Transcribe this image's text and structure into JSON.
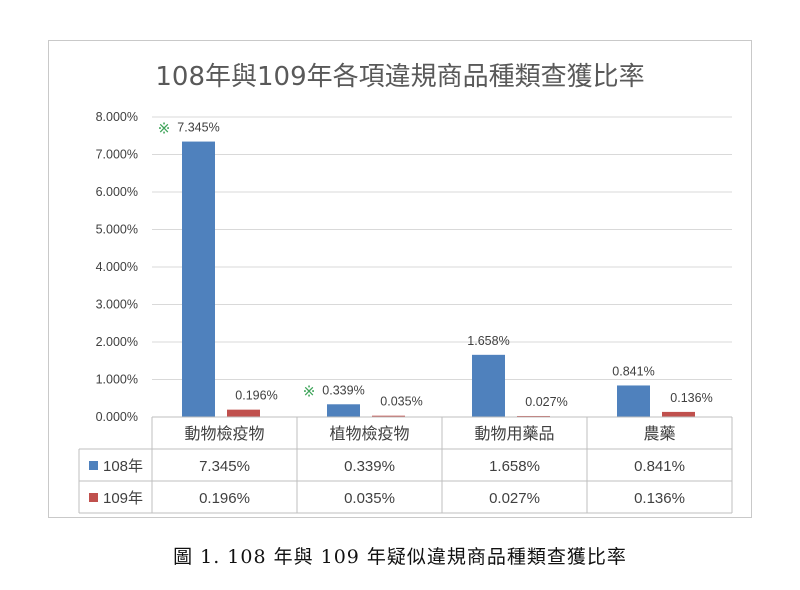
{
  "chart_data": {
    "type": "bar",
    "title": "108年與109年各項違規商品種類查獲比率",
    "categories": [
      "動物檢疫物",
      "植物檢疫物",
      "動物用藥品",
      "農藥"
    ],
    "series": [
      {
        "name": "108年",
        "values": [
          7.345,
          0.339,
          1.658,
          0.841
        ],
        "labels": [
          "7.345%",
          "0.339%",
          "1.658%",
          "0.841%"
        ],
        "color": "#4f81bd"
      },
      {
        "name": "109年",
        "values": [
          0.196,
          0.035,
          0.027,
          0.136
        ],
        "labels": [
          "0.196%",
          "0.035%",
          "0.027%",
          "0.136%"
        ],
        "color": "#c0504d"
      }
    ],
    "ylim": [
      0,
      8
    ],
    "yticks": [
      "0.000%",
      "1.000%",
      "2.000%",
      "3.000%",
      "4.000%",
      "5.000%",
      "6.000%",
      "7.000%",
      "8.000%"
    ],
    "grid": true,
    "legend": "data-table",
    "annotations": [
      {
        "symbol": "※",
        "category": "動物檢疫物"
      },
      {
        "symbol": "※",
        "category": "植物檢疫物"
      }
    ],
    "gridline_color": "#d9d9d9"
  },
  "caption": "圖 1. 108 年與 109 年疑似違規商品種類查獲比率"
}
